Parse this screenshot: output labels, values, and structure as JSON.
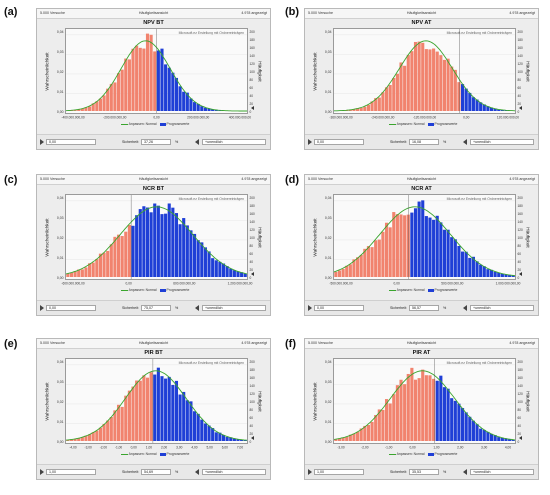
{
  "colors": {
    "low": "#f1836e",
    "high": "#1f3fd6",
    "fit": "#3aa52e"
  },
  "legend": {
    "fit_label": "Anpassen: Normal",
    "bars_label": "Prognosewerte"
  },
  "panels": [
    {
      "label": "(a)",
      "trials": "5.000 Versuche",
      "view": "Häufigkeitsansicht",
      "shown": "4.978 angezeigt",
      "title": "NPV BT",
      "ylabel_left": "Wahrscheinlichkeit",
      "ylabel_right": "Häufigkeit",
      "watermark": "Microsoft.ez Erstellung mit Ordnereinträgen",
      "from": "0,00",
      "certainty_label": "Sicherheit:",
      "certainty": "37,26",
      "percent": "%",
      "to": "+unendlich"
    },
    {
      "label": "(b)",
      "trials": "5.000 Versuche",
      "view": "Häufigkeitsansicht",
      "shown": "4.978 angezeigt",
      "title": "NPV AT",
      "ylabel_left": "Wahrscheinlichkeit",
      "ylabel_right": "Häufigkeit",
      "watermark": "Microsoft.ez Erstellung mit Ordnereinträgen",
      "from": "0,00",
      "certainty_label": "Sicherheit:",
      "certainty": "16,08",
      "percent": "%",
      "to": "+unendlich"
    },
    {
      "label": "(c)",
      "trials": "5.000 Versuche",
      "view": "Häufigkeitsansicht",
      "shown": "4.978 angezeigt",
      "title": "NCR BT",
      "ylabel_left": "Wahrscheinlichkeit",
      "ylabel_right": "Häufigkeit",
      "watermark": "Microsoft.ez Erstellung mit Ordnereinträgen",
      "from": "0,00",
      "certainty_label": "Sicherheit:",
      "certainty": "75,07",
      "percent": "%",
      "to": "+unendlich"
    },
    {
      "label": "(d)",
      "trials": "5.000 Versuche",
      "view": "Häufigkeitsansicht",
      "shown": "4.978 angezeigt",
      "title": "NCR AT",
      "ylabel_left": "Wahrscheinlichkeit",
      "ylabel_right": "Häufigkeit",
      "watermark": "Microsoft.ez Erstellung mit Ordnereinträgen",
      "from": "0,00",
      "certainty_label": "Sicherheit:",
      "certainty": "56,57",
      "percent": "%",
      "to": "+unendlich"
    },
    {
      "label": "(e)",
      "trials": "5.000 Versuche",
      "view": "Häufigkeitsansicht",
      "shown": "4.978 angezeigt",
      "title": "PIR BT",
      "ylabel_left": "Wahrscheinlichkeit",
      "ylabel_right": "Häufigkeit",
      "watermark": "Microsoft.ez Erstellung mit Ordnereinträgen",
      "from": "1,00",
      "certainty_label": "Sicherheit:",
      "certainty": "54,69",
      "percent": "%",
      "to": "+unendlich"
    },
    {
      "label": "(f)",
      "trials": "5.000 Versuche",
      "view": "Häufigkeitsansicht",
      "shown": "4.978 angezeigt",
      "title": "PIR AT",
      "ylabel_left": "Wahrscheinlichkeit",
      "ylabel_right": "Häufigkeit",
      "watermark": "Microsoft.ez Erstellung mit Ordnereinträgen",
      "from": "1,00",
      "certainty_label": "Sicherheit:",
      "certainty": "35,53",
      "percent": "%",
      "to": "+unendlich"
    }
  ],
  "chart_data": [
    {
      "type": "bar",
      "title": "NPV BT",
      "ylabel": "Wahrscheinlichkeit",
      "y2label": "Häufigkeit",
      "yticks": [
        "0,00",
        "0,01",
        "0,02",
        "0,03",
        "0,04"
      ],
      "y2ticks": [
        "0",
        "20",
        "40",
        "60",
        "80",
        "100",
        "120",
        "140",
        "160",
        "180",
        "200"
      ],
      "xticks": [
        "-400.000.000,00",
        "-200.000.000,00",
        "0,00",
        "200.000.000,00",
        "400.000.000,00"
      ],
      "xrange": [
        -500000000,
        500000000
      ],
      "ylim": [
        0,
        200
      ],
      "threshold": 0,
      "mean": -60000000,
      "sd": 135000000,
      "n_bins": 50
    },
    {
      "type": "bar",
      "title": "NPV AT",
      "ylabel": "Wahrscheinlichkeit",
      "y2label": "Häufigkeit",
      "yticks": [
        "0,00",
        "0,01",
        "0,02",
        "0,03",
        "0,04"
      ],
      "y2ticks": [
        "0",
        "20",
        "40",
        "60",
        "80",
        "100",
        "120",
        "140",
        "160",
        "180",
        "200"
      ],
      "xticks": [
        "-360.000.000,00",
        "-240.000.000,00",
        "-120.000.000,00",
        "0,00",
        "120.000.000,00"
      ],
      "xrange": [
        -450000000,
        200000000
      ],
      "ylim": [
        0,
        200
      ],
      "threshold": 0,
      "mean": -120000000,
      "sd": 95000000,
      "n_bins": 50
    },
    {
      "type": "bar",
      "title": "NCR BT",
      "ylabel": "Wahrscheinlichkeit",
      "y2label": "Häufigkeit",
      "yticks": [
        "0,00",
        "0,01",
        "0,02",
        "0,03",
        "0,04"
      ],
      "y2ticks": [
        "0",
        "20",
        "40",
        "60",
        "80",
        "100",
        "120",
        "140",
        "160",
        "180",
        "200"
      ],
      "xticks": [
        "-600.000.000,00",
        "0,00",
        "600.000.000,00",
        "1.200.000.000,00"
      ],
      "xrange": [
        -900000000,
        1600000000
      ],
      "ylim": [
        0,
        200
      ],
      "threshold": 0,
      "mean": 350000000,
      "sd": 500000000,
      "n_bins": 50
    },
    {
      "type": "bar",
      "title": "NCR AT",
      "ylabel": "Wahrscheinlichkeit",
      "y2label": "Häufigkeit",
      "yticks": [
        "0,00",
        "0,01",
        "0,02",
        "0,03",
        "0,04"
      ],
      "y2ticks": [
        "0",
        "20",
        "40",
        "60",
        "80",
        "100",
        "120",
        "140",
        "160",
        "180",
        "200"
      ],
      "xticks": [
        "-500.000.000,00",
        "0,00",
        "500.000.000,00",
        "1.000.000.000,00"
      ],
      "xrange": [
        -950000000,
        1350000000
      ],
      "ylim": [
        0,
        200
      ],
      "threshold": 0,
      "mean": 80000000,
      "sd": 450000000,
      "n_bins": 50
    },
    {
      "type": "bar",
      "title": "PIR BT",
      "ylabel": "Wahrscheinlichkeit",
      "y2label": "Häufigkeit",
      "yticks": [
        "0,00",
        "0,01",
        "0,02",
        "0,03",
        "0,04"
      ],
      "y2ticks": [
        "0",
        "20",
        "40",
        "60",
        "80",
        "100",
        "120",
        "140",
        "160",
        "180",
        "200"
      ],
      "xticks": [
        "-4,00",
        "-3,00",
        "-2,00",
        "-1,00",
        "0,00",
        "1,00",
        "2,00",
        "3,00",
        "4,00",
        "5,00",
        "6,00",
        "7,00"
      ],
      "xrange": [
        -5,
        7.5
      ],
      "ylim": [
        0,
        200
      ],
      "threshold": 1,
      "mean": 1.2,
      "sd": 2.1,
      "n_bins": 50
    },
    {
      "type": "bar",
      "title": "PIR AT",
      "ylabel": "Wahrscheinlichkeit",
      "y2label": "Häufigkeit",
      "yticks": [
        "0,00",
        "0,01",
        "0,02",
        "0,03",
        "0,04"
      ],
      "y2ticks": [
        "0",
        "20",
        "40",
        "60",
        "80",
        "100",
        "120",
        "140",
        "160",
        "180",
        "200"
      ],
      "xticks": [
        "-3,00",
        "-2,00",
        "-1,00",
        "0,00",
        "1,00",
        "2,00",
        "3,00",
        "4,00"
      ],
      "xrange": [
        -4,
        5
      ],
      "ylim": [
        0,
        200
      ],
      "threshold": 1,
      "mean": 0.4,
      "sd": 1.6,
      "n_bins": 50
    }
  ]
}
